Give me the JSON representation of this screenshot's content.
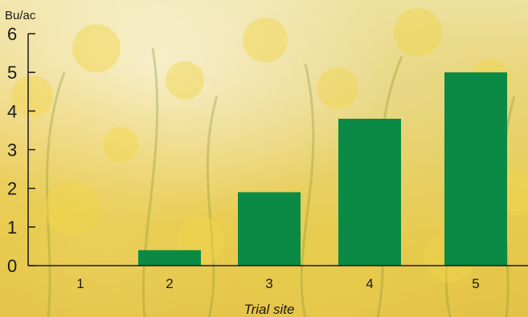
{
  "chart_data": {
    "type": "bar",
    "categories": [
      "1",
      "2",
      "3",
      "4",
      "5"
    ],
    "values": [
      0.0,
      0.4,
      1.9,
      3.8,
      5.0
    ],
    "ylabel": "Bu/ac",
    "xlabel": "Trial site",
    "ylim": [
      0,
      6
    ],
    "yticks": [
      0,
      1,
      2,
      3,
      4,
      5,
      6
    ],
    "bar_color": "#0b8a45",
    "axis_color": "#1a1a1a",
    "grid": false,
    "legend": "none"
  }
}
